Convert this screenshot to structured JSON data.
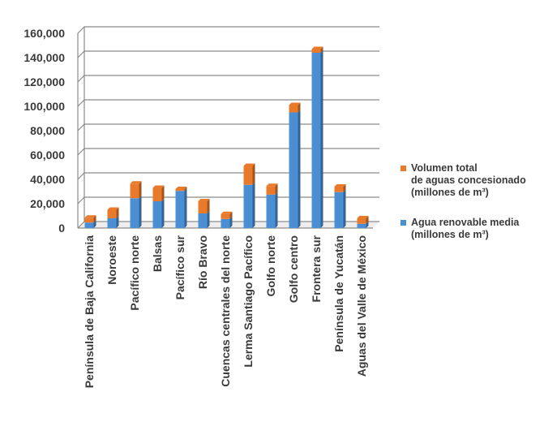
{
  "chart_data": {
    "type": "bar",
    "stacked": true,
    "categories": [
      "Península de Baja California",
      "Noroeste",
      "Pacífico norte",
      "Balsas",
      "Pacífico sur",
      "Río Bravo",
      "Cuencas centrales del norte",
      "Lerma Santiago Pacífico",
      "Golfo norte",
      "Golfo centro",
      "Frontera sur",
      "Península de Yucatán",
      "Aguas del Valle de México"
    ],
    "series": [
      {
        "name": "Agua renovable media (millones de m³)",
        "color": "#4a8fd4",
        "values": [
          4500,
          8000,
          24500,
          22000,
          30500,
          12000,
          7500,
          35500,
          27500,
          95000,
          144000,
          29500,
          3500
        ]
      },
      {
        "name": "Volumen total de aguas concesionado (millones de m³)",
        "color": "#e97a2b",
        "values": [
          4000,
          7000,
          12000,
          11000,
          1500,
          10000,
          4000,
          15500,
          7000,
          6000,
          3000,
          4500,
          4500
        ]
      }
    ],
    "ylim": [
      0,
      160000
    ],
    "yticks": [
      0,
      20000,
      40000,
      60000,
      80000,
      100000,
      120000,
      140000,
      160000
    ],
    "ytick_labels": [
      "0",
      "20,000",
      "40,000",
      "60,000",
      "80,000",
      "100,000",
      "120,000",
      "140,000",
      "160,000"
    ],
    "grid": true,
    "legend_position": "right"
  },
  "legend": {
    "concesionado": [
      "Volumen total",
      "de aguas concesionado",
      "(millones de m³)"
    ],
    "renovable": [
      "Agua renovable media",
      "(millones de m³)"
    ]
  }
}
